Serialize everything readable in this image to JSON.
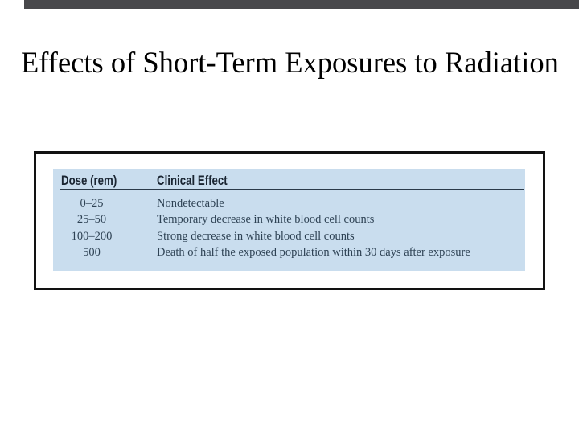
{
  "page": {
    "background_color": "#ffffff",
    "top_bar_color": "#48484b"
  },
  "slide": {
    "title": "Effects of Short-Term Exposures to Radiation",
    "title_color": "#000000"
  },
  "figure": {
    "frame_border_color": "#121212",
    "panel_color": "#c9ddee",
    "header_text_color": "#1a2532",
    "body_text_color": "#2e4254",
    "table": {
      "columns": [
        "Dose (rem)",
        "Clinical Effect"
      ],
      "rows": [
        {
          "dose": "0–25",
          "effect": "Nondetectable"
        },
        {
          "dose": "25–50",
          "effect": "Temporary decrease in white blood cell counts"
        },
        {
          "dose": "100–200",
          "effect": "Strong decrease in white blood cell counts"
        },
        {
          "dose": "500",
          "effect": "Death of half the exposed population within 30 days after exposure"
        }
      ]
    }
  }
}
